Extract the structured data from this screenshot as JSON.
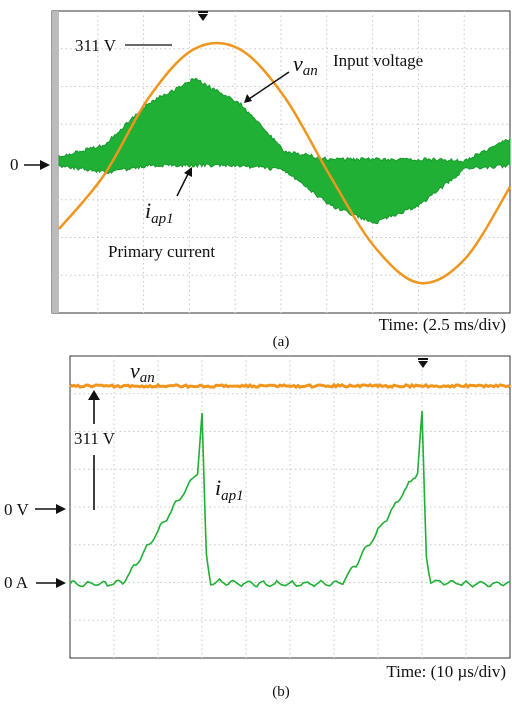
{
  "chart_data": [
    {
      "panel": "(a)",
      "type": "line",
      "x": [
        0,
        2.5,
        5,
        7.5,
        10,
        12.5,
        15,
        17.5,
        20,
        22.5,
        25
      ],
      "series": [
        {
          "name": "v_an",
          "label_symbol": "v",
          "label_sub": "an",
          "label_text": "Input voltage",
          "color": "#f0961e",
          "y": [
            -0.55,
            -0.1,
            0.55,
            0.95,
            0.95,
            0.55,
            -0.1,
            -0.7,
            -1.0,
            -0.8,
            -0.2
          ]
        },
        {
          "name": "i_ap1",
          "label_symbol": "i",
          "label_sub": "ap1",
          "label_text": "Primary current",
          "color": "#1fb035",
          "envelope_upper": [
            0.05,
            0.15,
            0.5,
            0.7,
            0.5,
            0.1,
            0.03,
            0.03,
            0.03,
            0.02,
            0.2
          ],
          "envelope_lower": [
            -0.02,
            -0.08,
            -0.02,
            -0.02,
            -0.02,
            -0.06,
            -0.35,
            -0.5,
            -0.35,
            -0.05,
            -0.02
          ]
        }
      ],
      "annotations": {
        "peak": "311 V",
        "zero": "0"
      },
      "time_label": "Time: (2.5 ms/div)",
      "grid": true
    },
    {
      "panel": "(b)",
      "type": "line",
      "x": [
        0,
        10,
        20,
        30,
        40,
        50,
        60,
        70,
        80,
        90,
        100
      ],
      "series": [
        {
          "name": "v_an",
          "label_symbol": "v",
          "label_sub": "an",
          "color": "#f0961e",
          "y": [
            311,
            311,
            311,
            311,
            311,
            311,
            311,
            311,
            311,
            311,
            311
          ]
        },
        {
          "name": "i_ap1",
          "label_symbol": "i",
          "label_sub": "ap1",
          "color": "#1fb035",
          "y": [
            0,
            0,
            0.1,
            1.4,
            2.4,
            0.15,
            0,
            0,
            0.3,
            2.6,
            0.1
          ]
        }
      ],
      "annotations": {
        "voltage": "311 V",
        "zero_v": "0 V",
        "zero_a": "0 A"
      },
      "time_label": "Time: (10 µs/div)",
      "grid": true
    }
  ],
  "captions": {
    "a": "(a)",
    "b": "(b)"
  }
}
